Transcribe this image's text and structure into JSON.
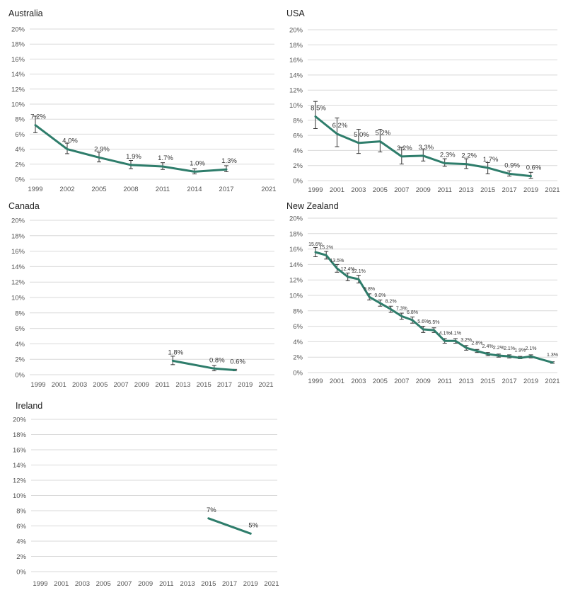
{
  "series_color": "#2E7D6B",
  "chart_data": [
    {
      "type": "line",
      "title": "Australia",
      "ylim": [
        0,
        20
      ],
      "y_ticks": [
        "0%",
        "2%",
        "4%",
        "6%",
        "8%",
        "10%",
        "12%",
        "14%",
        "16%",
        "18%",
        "20%"
      ],
      "x_ticks": [
        "1999",
        "2002",
        "2005",
        "2008",
        "2011",
        "2014",
        "2017",
        "2021"
      ],
      "xlim": [
        1999,
        2021
      ],
      "grid": true,
      "x": [
        1999,
        2002,
        2005,
        2008,
        2011,
        2014,
        2017
      ],
      "y": [
        7.2,
        4.0,
        2.9,
        1.9,
        1.7,
        1.0,
        1.3
      ],
      "labels": [
        "7.2%",
        "4.0%",
        "2.9%",
        "1.9%",
        "1.7%",
        "1.0%",
        "1.3%"
      ],
      "err_low": [
        6.2,
        3.4,
        2.3,
        1.4,
        1.3,
        0.7,
        1.0
      ],
      "err_high": [
        8.4,
        4.8,
        3.6,
        2.5,
        2.2,
        1.4,
        1.8
      ]
    },
    {
      "type": "line",
      "title": "USA",
      "ylim": [
        0,
        20
      ],
      "y_ticks": [
        "0%",
        "2%",
        "4%",
        "6%",
        "8%",
        "10%",
        "12%",
        "14%",
        "16%",
        "18%",
        "20%"
      ],
      "x_ticks": [
        "1999",
        "2001",
        "2003",
        "2005",
        "2007",
        "2009",
        "2011",
        "2013",
        "2015",
        "2017",
        "2019",
        "2021"
      ],
      "xlim": [
        1999,
        2021
      ],
      "grid": true,
      "x": [
        1999,
        2001,
        2003,
        2005,
        2007,
        2009,
        2011,
        2013,
        2015,
        2017,
        2019
      ],
      "y": [
        8.5,
        6.2,
        5.0,
        5.2,
        3.2,
        3.3,
        2.3,
        2.2,
        1.7,
        0.9,
        0.6
      ],
      "labels": [
        "8.5%",
        "6.2%",
        "5.0%",
        "5.2%",
        "3.2%",
        "3.3%",
        "2.3%",
        "2.2%",
        "1.7%",
        "0.9%",
        "0.6%"
      ],
      "err_low": [
        6.9,
        4.5,
        3.6,
        3.8,
        2.2,
        2.6,
        1.9,
        1.6,
        0.9,
        0.6,
        0.3
      ],
      "err_high": [
        10.5,
        8.3,
        6.8,
        6.8,
        4.4,
        4.2,
        2.9,
        2.9,
        2.4,
        1.3,
        1.1
      ]
    },
    {
      "type": "line",
      "title": "Canada",
      "ylim": [
        0,
        20
      ],
      "y_ticks": [
        "0%",
        "2%",
        "4%",
        "6%",
        "8%",
        "10%",
        "12%",
        "14%",
        "16%",
        "18%",
        "20%"
      ],
      "x_ticks": [
        "1999",
        "2001",
        "2003",
        "2005",
        "2007",
        "2009",
        "2011",
        "2013",
        "2015",
        "2017",
        "2019",
        "2021"
      ],
      "xlim": [
        1999,
        2021
      ],
      "grid": true,
      "x": [
        2012,
        2016,
        2018
      ],
      "y": [
        1.8,
        0.8,
        0.6
      ],
      "labels": [
        "1.8%",
        "0.8%",
        "0.6%"
      ],
      "err_low": [
        1.3,
        0.5,
        0.5
      ],
      "err_high": [
        2.4,
        1.2,
        0.7
      ]
    },
    {
      "type": "line",
      "title": "New Zealand",
      "ylim": [
        0,
        20
      ],
      "y_ticks": [
        "0%",
        "2%",
        "4%",
        "6%",
        "8%",
        "10%",
        "12%",
        "14%",
        "16%",
        "18%",
        "20%"
      ],
      "x_ticks": [
        "1999",
        "2001",
        "2003",
        "2005",
        "2007",
        "2009",
        "2011",
        "2013",
        "2015",
        "2017",
        "2019",
        "2021"
      ],
      "xlim": [
        1999,
        2021
      ],
      "grid": true,
      "x": [
        1999,
        2000,
        2001,
        2002,
        2003,
        2004,
        2005,
        2006,
        2007,
        2008,
        2009,
        2010,
        2011,
        2012,
        2013,
        2014,
        2015,
        2016,
        2017,
        2018,
        2019,
        2021
      ],
      "y": [
        15.6,
        15.2,
        13.5,
        12.4,
        12.1,
        9.8,
        9.0,
        8.2,
        7.3,
        6.8,
        5.6,
        5.5,
        4.1,
        4.1,
        3.2,
        2.8,
        2.4,
        2.2,
        2.1,
        1.9,
        2.1,
        1.3
      ],
      "labels": [
        "15.6%",
        "15.2%",
        "13.5%",
        "12.4%",
        "12.1%",
        "9.8%",
        "9.0%",
        "8.2%",
        "7.3%",
        "6.8%",
        "5.6%",
        "5.5%",
        "4.1%",
        "4.1%",
        "3.2%",
        "2.8%",
        "2.4%",
        "2.2%",
        "2.1%",
        "1.9%",
        "2.1%",
        "1.3%"
      ],
      "err_low": [
        15.0,
        14.7,
        13.0,
        11.9,
        11.6,
        9.4,
        8.6,
        7.8,
        6.9,
        6.4,
        5.2,
        5.2,
        3.8,
        3.8,
        2.9,
        2.6,
        2.2,
        2.0,
        1.9,
        1.8,
        1.9,
        1.2
      ],
      "err_high": [
        16.2,
        15.7,
        14.0,
        12.9,
        12.6,
        10.2,
        9.4,
        8.6,
        7.7,
        7.2,
        6.0,
        5.8,
        4.4,
        4.4,
        3.5,
        3.0,
        2.6,
        2.4,
        2.3,
        2.1,
        2.3,
        1.4
      ]
    },
    {
      "type": "line",
      "title": "Ireland",
      "ylim": [
        0,
        20
      ],
      "y_ticks": [
        "0%",
        "2%",
        "4%",
        "6%",
        "8%",
        "10%",
        "12%",
        "14%",
        "16%",
        "18%",
        "20%"
      ],
      "x_ticks": [
        "1999",
        "2001",
        "2003",
        "2005",
        "2007",
        "2009",
        "2011",
        "2013",
        "2015",
        "2017",
        "2019",
        "2021"
      ],
      "xlim": [
        1999,
        2021
      ],
      "grid": true,
      "x": [
        2015,
        2019
      ],
      "y": [
        7,
        5
      ],
      "labels": [
        "7%",
        "5%"
      ],
      "err_low": [],
      "err_high": []
    }
  ]
}
